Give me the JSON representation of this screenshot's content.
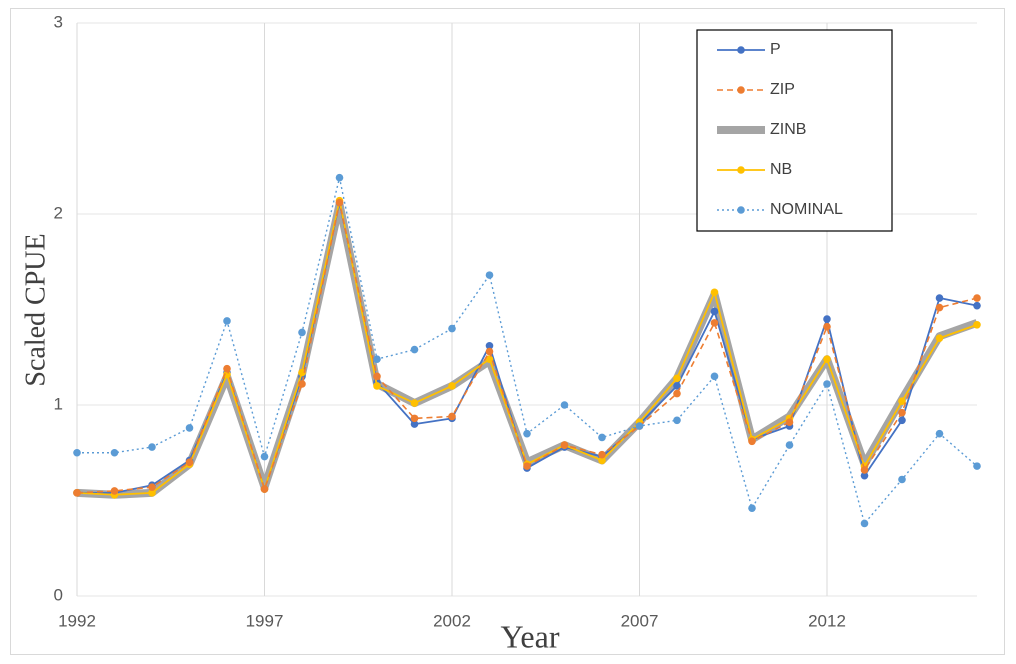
{
  "chart_data": {
    "type": "line",
    "x_label": "Year",
    "y_label": "Scaled CPUE",
    "x": [
      1992,
      1993,
      1994,
      1995,
      1996,
      1997,
      1998,
      1999,
      2000,
      2001,
      2002,
      2003,
      2004,
      2005,
      2006,
      2007,
      2008,
      2009,
      2010,
      2011,
      2012,
      2013,
      2014,
      2015,
      2016
    ],
    "xlim": [
      1992,
      2016
    ],
    "xticks": [
      1992,
      1997,
      2002,
      2007,
      2012
    ],
    "ylim": [
      0,
      3
    ],
    "yticks": [
      0,
      1,
      2,
      3
    ],
    "grid": true,
    "legend": "top-right",
    "series": [
      {
        "name": "P",
        "color": "#4472c4",
        "line": "solid",
        "marker": true,
        "values": [
          0.54,
          0.54,
          0.58,
          0.71,
          1.17,
          0.56,
          1.15,
          2.06,
          1.12,
          0.9,
          0.93,
          1.31,
          0.67,
          0.78,
          0.73,
          0.9,
          1.1,
          1.49,
          0.82,
          0.89,
          1.45,
          0.63,
          0.92,
          1.56,
          1.52
        ]
      },
      {
        "name": "ZIP",
        "color": "#ed7d31",
        "line": "dashed",
        "marker": true,
        "values": [
          0.54,
          0.55,
          0.57,
          0.7,
          1.19,
          0.56,
          1.11,
          2.06,
          1.15,
          0.93,
          0.94,
          1.28,
          0.68,
          0.79,
          0.74,
          0.89,
          1.06,
          1.43,
          0.81,
          0.91,
          1.41,
          0.66,
          0.96,
          1.51,
          1.56
        ]
      },
      {
        "name": "ZINB",
        "color": "#a5a5a5",
        "line": "thick",
        "marker": false,
        "values": [
          0.54,
          0.53,
          0.54,
          0.69,
          1.15,
          0.57,
          1.16,
          2.05,
          1.11,
          1.01,
          1.1,
          1.23,
          0.7,
          0.79,
          0.71,
          0.91,
          1.14,
          1.58,
          0.82,
          0.94,
          1.24,
          0.69,
          1.03,
          1.36,
          1.43
        ]
      },
      {
        "name": "NB",
        "color": "#ffc000",
        "line": "solid",
        "marker": true,
        "values": [
          0.54,
          0.53,
          0.54,
          0.69,
          1.16,
          0.56,
          1.17,
          2.07,
          1.1,
          1.01,
          1.1,
          1.24,
          0.69,
          0.79,
          0.71,
          0.91,
          1.14,
          1.59,
          0.82,
          0.93,
          1.24,
          0.68,
          1.02,
          1.35,
          1.42
        ]
      },
      {
        "name": "NOMINAL",
        "color": "#5b9bd5",
        "line": "dotted",
        "marker": true,
        "values": [
          0.75,
          0.75,
          0.78,
          0.88,
          1.44,
          0.73,
          1.38,
          2.19,
          1.24,
          1.29,
          1.4,
          1.68,
          0.85,
          1.0,
          0.83,
          0.89,
          0.92,
          1.15,
          0.46,
          0.79,
          1.11,
          0.38,
          0.61,
          0.85,
          0.68
        ]
      }
    ]
  }
}
